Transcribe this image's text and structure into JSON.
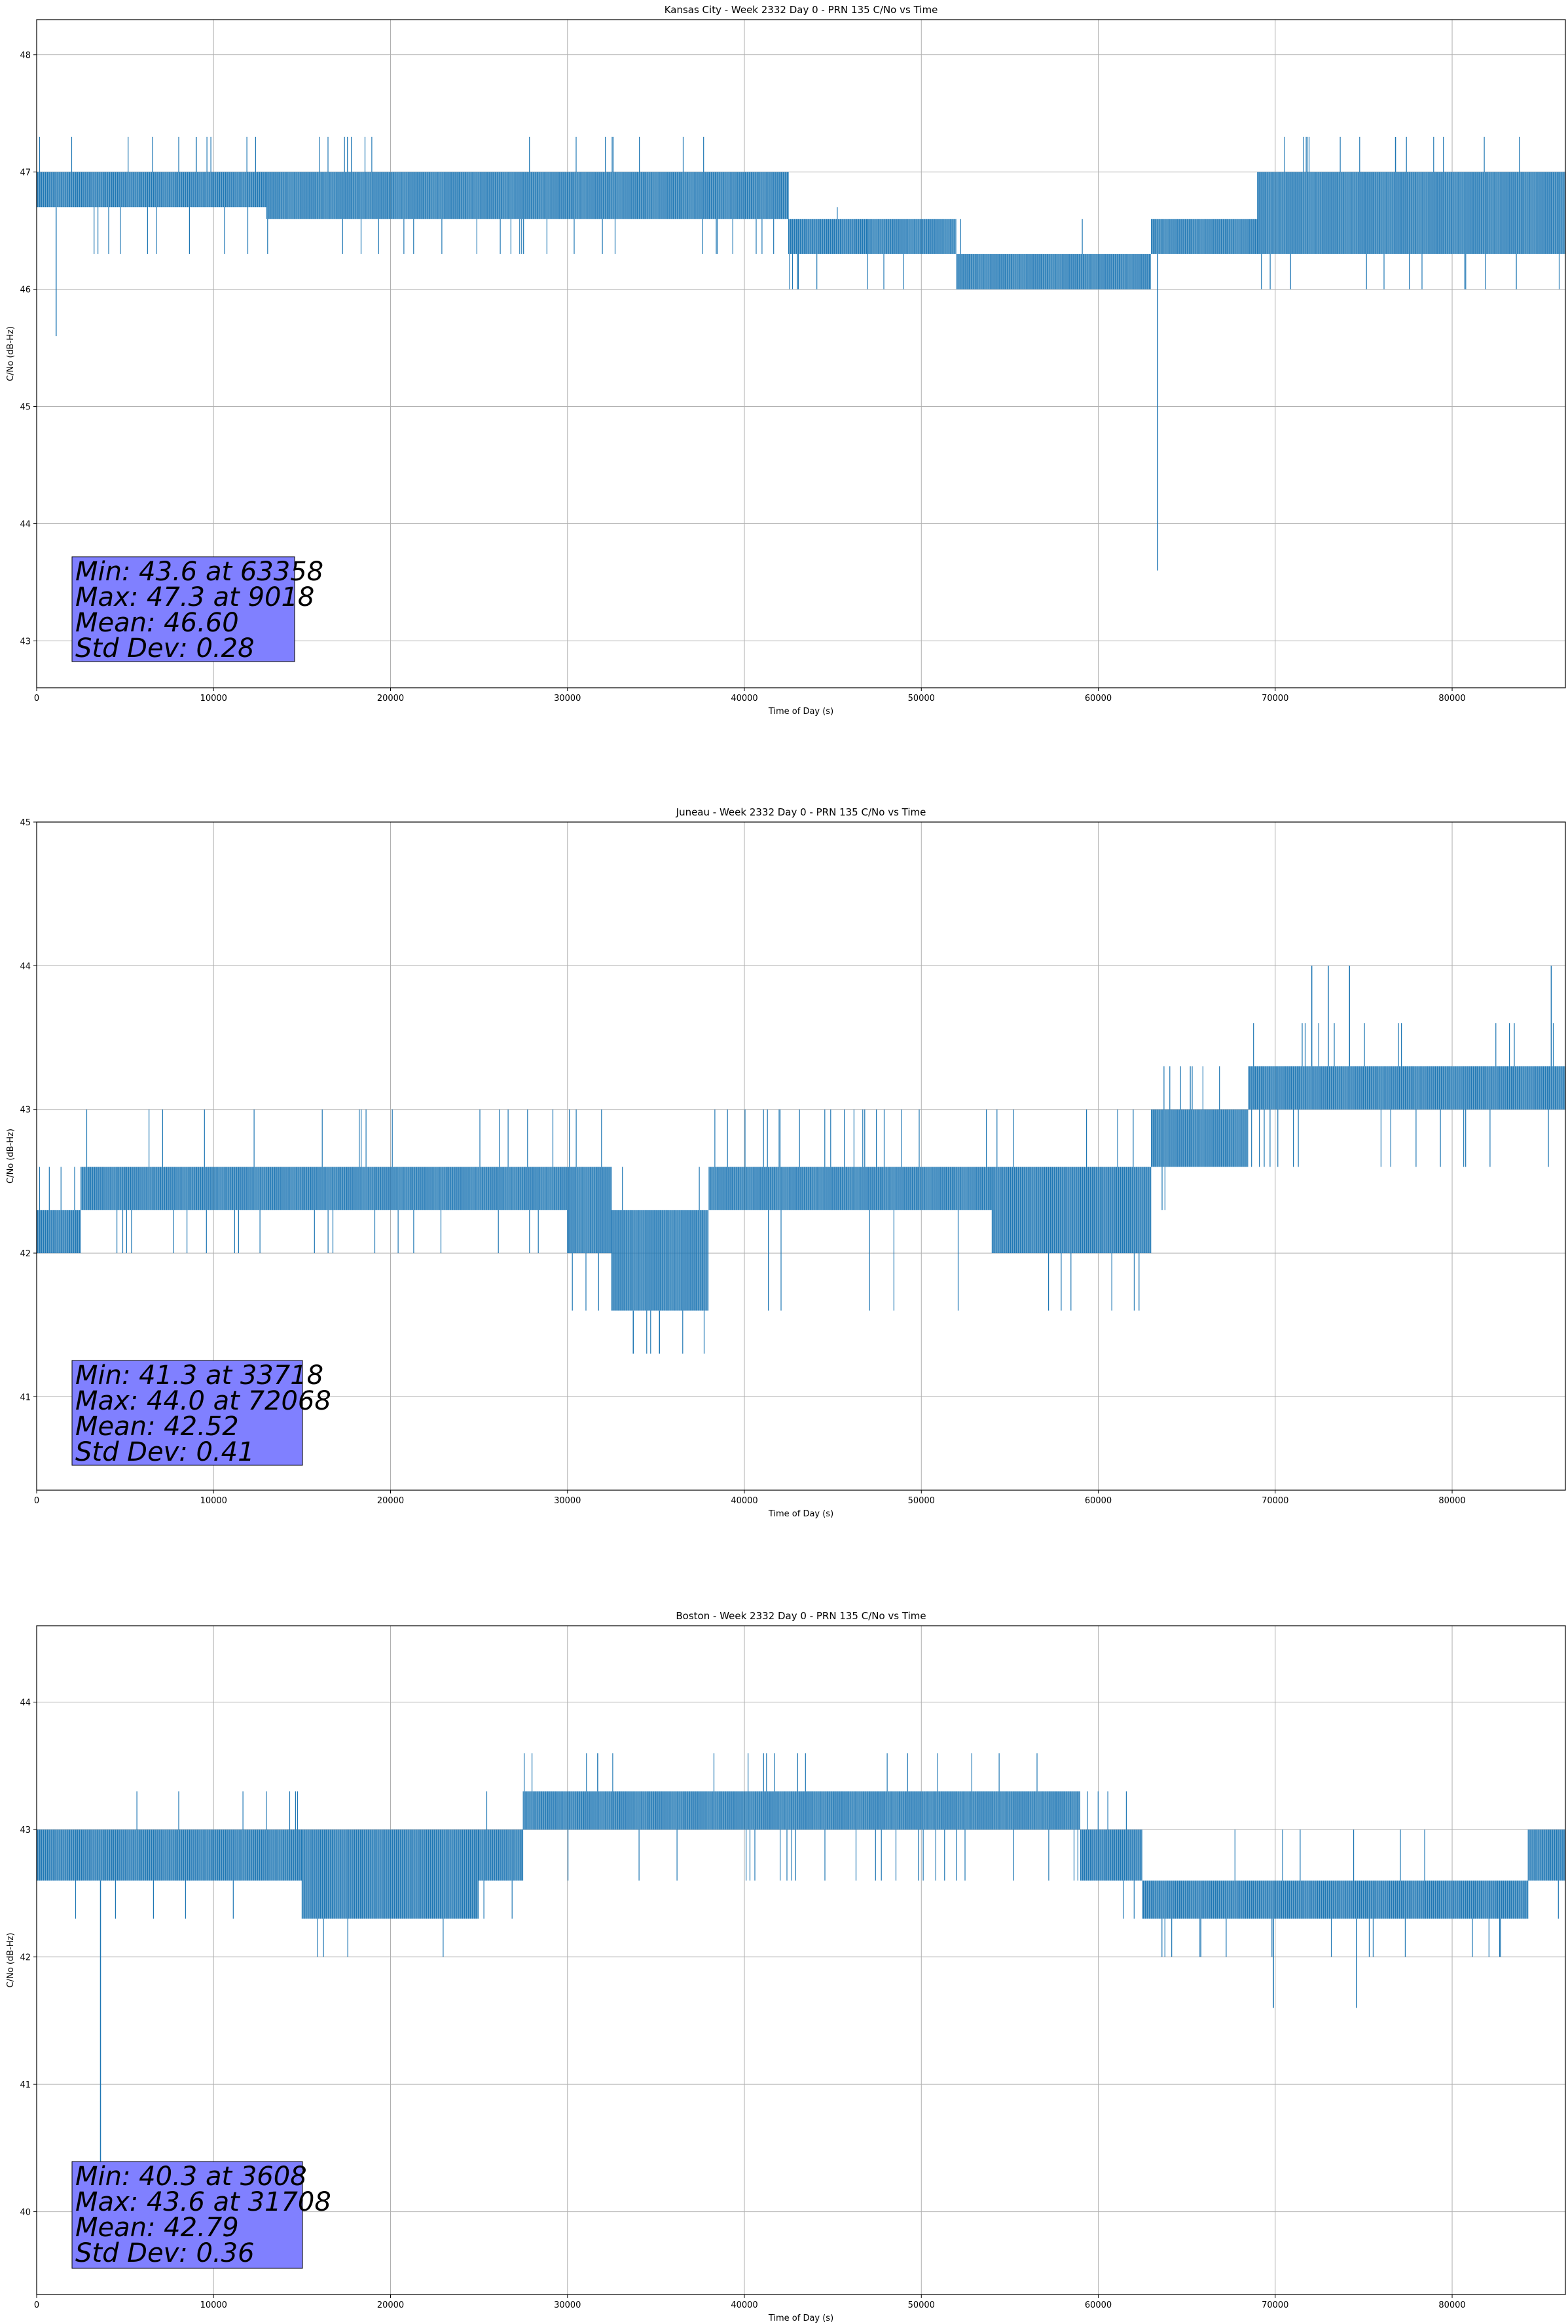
{
  "colors": {
    "line": "#1f77b4",
    "grid": "#b0b0b0",
    "stats_box": "#8080ff",
    "axes": "#000000"
  },
  "chart_data": [
    {
      "type": "line",
      "title": "Kansas City - Week 2332 Day 0 - PRN 135 C/No vs Time",
      "xlabel": "Time of Day (s)",
      "ylabel": "C/No (dB-Hz)",
      "xlim": [
        0,
        86400
      ],
      "ylim": [
        42.6,
        48.3
      ],
      "xticks": [
        0,
        10000,
        20000,
        30000,
        40000,
        50000,
        60000,
        70000,
        80000
      ],
      "yticks": [
        43,
        44,
        45,
        46,
        47,
        48
      ],
      "grid": true,
      "stats": [
        "Min: 43.6 at 63358",
        "Max: 47.3 at 9018",
        "Mean: 46.60",
        "Std Dev: 0.28"
      ],
      "segments": [
        {
          "x": [
            0,
            13000
          ],
          "levels": [
            46.7,
            47.0
          ],
          "low": 46.3,
          "high": 47.3
        },
        {
          "x": [
            13000,
            42500
          ],
          "levels": [
            46.6,
            47.0
          ],
          "low": 46.3,
          "high": 47.3
        },
        {
          "x": [
            42500,
            47000
          ],
          "levels": [
            46.3,
            46.6
          ],
          "low": 46.0,
          "high": 46.7
        },
        {
          "x": [
            47000,
            52000
          ],
          "levels": [
            46.3,
            46.6
          ],
          "low": 46.0,
          "high": 46.6
        },
        {
          "x": [
            52000,
            63000
          ],
          "levels": [
            46.0,
            46.3
          ],
          "low": 46.0,
          "high": 46.6
        },
        {
          "x": [
            63000,
            69000
          ],
          "levels": [
            46.3,
            46.6
          ],
          "low": 46.3,
          "high": 46.6
        },
        {
          "x": [
            69000,
            86400
          ],
          "levels": [
            46.3,
            47.0
          ],
          "low": 46.0,
          "high": 47.3
        }
      ],
      "spikes": [
        {
          "x": 1100,
          "y": 45.6
        },
        {
          "x": 63358,
          "y": 43.6
        },
        {
          "x": 9018,
          "y": 47.3
        },
        {
          "x": 76800,
          "y": 47.3
        }
      ]
    },
    {
      "type": "line",
      "title": "Juneau - Week 2332 Day 0 - PRN 135 C/No vs Time",
      "xlabel": "Time of Day (s)",
      "ylabel": "C/No (dB-Hz)",
      "xlim": [
        0,
        86400
      ],
      "ylim": [
        40.35,
        45.0
      ],
      "xticks": [
        0,
        10000,
        20000,
        30000,
        40000,
        50000,
        60000,
        70000,
        80000
      ],
      "yticks": [
        41,
        42,
        43,
        44,
        45
      ],
      "grid": true,
      "stats": [
        "Min: 41.3 at 33718",
        "Max: 44.0 at 72068",
        "Mean: 42.52",
        "Std Dev: 0.41"
      ],
      "segments": [
        {
          "x": [
            0,
            2500
          ],
          "levels": [
            42.0,
            42.3
          ],
          "low": 42.0,
          "high": 42.6
        },
        {
          "x": [
            2500,
            30000
          ],
          "levels": [
            42.3,
            42.6
          ],
          "low": 42.0,
          "high": 43.0
        },
        {
          "x": [
            30000,
            32500
          ],
          "levels": [
            42.0,
            42.6
          ],
          "low": 41.6,
          "high": 43.0
        },
        {
          "x": [
            32500,
            38000
          ],
          "levels": [
            41.6,
            42.3
          ],
          "low": 41.3,
          "high": 42.6
        },
        {
          "x": [
            38000,
            54000
          ],
          "levels": [
            42.3,
            42.6
          ],
          "low": 41.6,
          "high": 43.0
        },
        {
          "x": [
            54000,
            63000
          ],
          "levels": [
            42.0,
            42.6
          ],
          "low": 41.6,
          "high": 43.0
        },
        {
          "x": [
            63000,
            68500
          ],
          "levels": [
            42.6,
            43.0
          ],
          "low": 42.3,
          "high": 43.3
        },
        {
          "x": [
            68500,
            86400
          ],
          "levels": [
            43.0,
            43.3
          ],
          "low": 42.6,
          "high": 43.6
        }
      ],
      "spikes": [
        {
          "x": 72068,
          "y": 44.0
        },
        {
          "x": 73000,
          "y": 44.0
        },
        {
          "x": 74200,
          "y": 44.0
        },
        {
          "x": 85600,
          "y": 44.0
        },
        {
          "x": 33718,
          "y": 41.3
        },
        {
          "x": 35200,
          "y": 41.3
        }
      ]
    },
    {
      "type": "line",
      "title": "Boston - Week 2332 Day 0 - PRN 135 C/No vs Time",
      "xlabel": "Time of Day (s)",
      "ylabel": "C/No (dB-Hz)",
      "xlim": [
        0,
        86400
      ],
      "ylim": [
        39.35,
        44.6
      ],
      "xticks": [
        0,
        10000,
        20000,
        30000,
        40000,
        50000,
        60000,
        70000,
        80000
      ],
      "yticks": [
        40,
        41,
        42,
        43,
        44
      ],
      "grid": true,
      "stats": [
        "Min: 40.3 at 3608",
        "Max: 43.6 at 31708",
        "Mean: 42.79",
        "Std Dev: 0.36"
      ],
      "segments": [
        {
          "x": [
            0,
            15000
          ],
          "levels": [
            42.6,
            43.0
          ],
          "low": 42.3,
          "high": 43.3
        },
        {
          "x": [
            15000,
            25000
          ],
          "levels": [
            42.3,
            43.0
          ],
          "low": 42.0,
          "high": 43.0
        },
        {
          "x": [
            25000,
            27500
          ],
          "levels": [
            42.6,
            43.0
          ],
          "low": 42.3,
          "high": 43.3
        },
        {
          "x": [
            27500,
            59000
          ],
          "levels": [
            43.0,
            43.3
          ],
          "low": 42.6,
          "high": 43.6
        },
        {
          "x": [
            59000,
            62500
          ],
          "levels": [
            42.6,
            43.0
          ],
          "low": 42.3,
          "high": 43.3
        },
        {
          "x": [
            62500,
            84300
          ],
          "levels": [
            42.3,
            42.6
          ],
          "low": 42.0,
          "high": 43.0
        },
        {
          "x": [
            84300,
            86400
          ],
          "levels": [
            42.6,
            43.0
          ],
          "low": 42.3,
          "high": 43.0
        }
      ],
      "spikes": [
        {
          "x": 3608,
          "y": 40.3
        },
        {
          "x": 69900,
          "y": 41.6
        },
        {
          "x": 74600,
          "y": 41.6
        },
        {
          "x": 31708,
          "y": 43.6
        }
      ]
    }
  ]
}
